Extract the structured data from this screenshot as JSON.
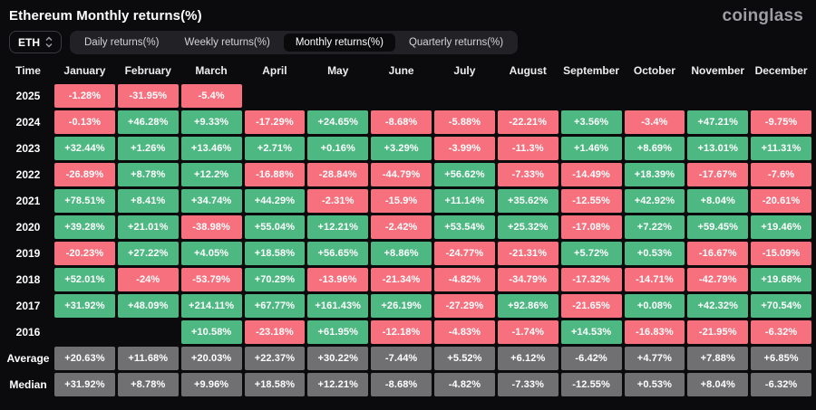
{
  "header": {
    "title": "Ethereum Monthly returns(%)",
    "logo": "coinglass"
  },
  "toolbar": {
    "symbol": "ETH",
    "tabs": [
      {
        "label": "Daily returns(%)",
        "active": false
      },
      {
        "label": "Weekly returns(%)",
        "active": false
      },
      {
        "label": "Monthly returns(%)",
        "active": true
      },
      {
        "label": "Quarterly returns(%)",
        "active": false
      }
    ]
  },
  "table": {
    "time_header": "Time"
  },
  "colors": {
    "positive": "#4eb883",
    "negative": "#f7707e",
    "summary": "#707073",
    "background": "#0b0b0d"
  },
  "chart_data": {
    "type": "heatmap",
    "title": "Ethereum Monthly returns(%)",
    "value_unit": "%",
    "columns": [
      "January",
      "February",
      "March",
      "April",
      "May",
      "June",
      "July",
      "August",
      "September",
      "October",
      "November",
      "December"
    ],
    "rows": [
      {
        "label": "2025",
        "summary": false,
        "values": [
          -1.28,
          -31.95,
          -5.4,
          null,
          null,
          null,
          null,
          null,
          null,
          null,
          null,
          null
        ]
      },
      {
        "label": "2024",
        "summary": false,
        "values": [
          -0.13,
          46.28,
          9.33,
          -17.29,
          24.65,
          -8.68,
          -5.88,
          -22.21,
          3.56,
          -3.4,
          47.21,
          -9.75
        ]
      },
      {
        "label": "2023",
        "summary": false,
        "values": [
          32.44,
          1.26,
          13.46,
          2.71,
          0.16,
          3.29,
          -3.99,
          -11.3,
          1.46,
          8.69,
          13.01,
          11.31
        ]
      },
      {
        "label": "2022",
        "summary": false,
        "values": [
          -26.89,
          8.78,
          12.2,
          -16.88,
          -28.84,
          -44.79,
          56.62,
          -7.33,
          -14.49,
          18.39,
          -17.67,
          -7.6
        ]
      },
      {
        "label": "2021",
        "summary": false,
        "values": [
          78.51,
          8.41,
          34.74,
          44.29,
          -2.31,
          -15.9,
          11.14,
          35.62,
          -12.55,
          42.92,
          8.04,
          -20.61
        ]
      },
      {
        "label": "2020",
        "summary": false,
        "values": [
          39.28,
          21.01,
          -38.98,
          55.04,
          12.21,
          -2.42,
          53.54,
          25.32,
          -17.08,
          7.22,
          59.45,
          19.46
        ]
      },
      {
        "label": "2019",
        "summary": false,
        "values": [
          -20.23,
          27.22,
          4.05,
          18.58,
          56.65,
          8.86,
          -24.77,
          -21.31,
          5.72,
          0.53,
          -16.67,
          -15.09
        ]
      },
      {
        "label": "2018",
        "summary": false,
        "values": [
          52.01,
          -24,
          -53.79,
          70.29,
          -13.96,
          -21.34,
          -4.82,
          -34.79,
          -17.32,
          -14.71,
          -42.79,
          19.68
        ]
      },
      {
        "label": "2017",
        "summary": false,
        "values": [
          31.92,
          48.09,
          214.11,
          67.77,
          161.43,
          26.19,
          -27.29,
          92.86,
          -21.65,
          0.08,
          42.32,
          70.54
        ]
      },
      {
        "label": "2016",
        "summary": false,
        "values": [
          null,
          null,
          10.58,
          -23.18,
          61.95,
          -12.18,
          -4.83,
          -1.74,
          14.53,
          -16.83,
          -21.95,
          -6.32
        ]
      },
      {
        "label": "Average",
        "summary": true,
        "values": [
          20.63,
          11.68,
          20.03,
          22.37,
          30.22,
          -7.44,
          5.52,
          6.12,
          -6.42,
          4.77,
          7.88,
          6.85
        ]
      },
      {
        "label": "Median",
        "summary": true,
        "values": [
          31.92,
          8.78,
          9.96,
          18.58,
          12.21,
          -8.68,
          -4.82,
          -7.33,
          -12.55,
          0.53,
          8.04,
          -6.32
        ]
      }
    ]
  }
}
